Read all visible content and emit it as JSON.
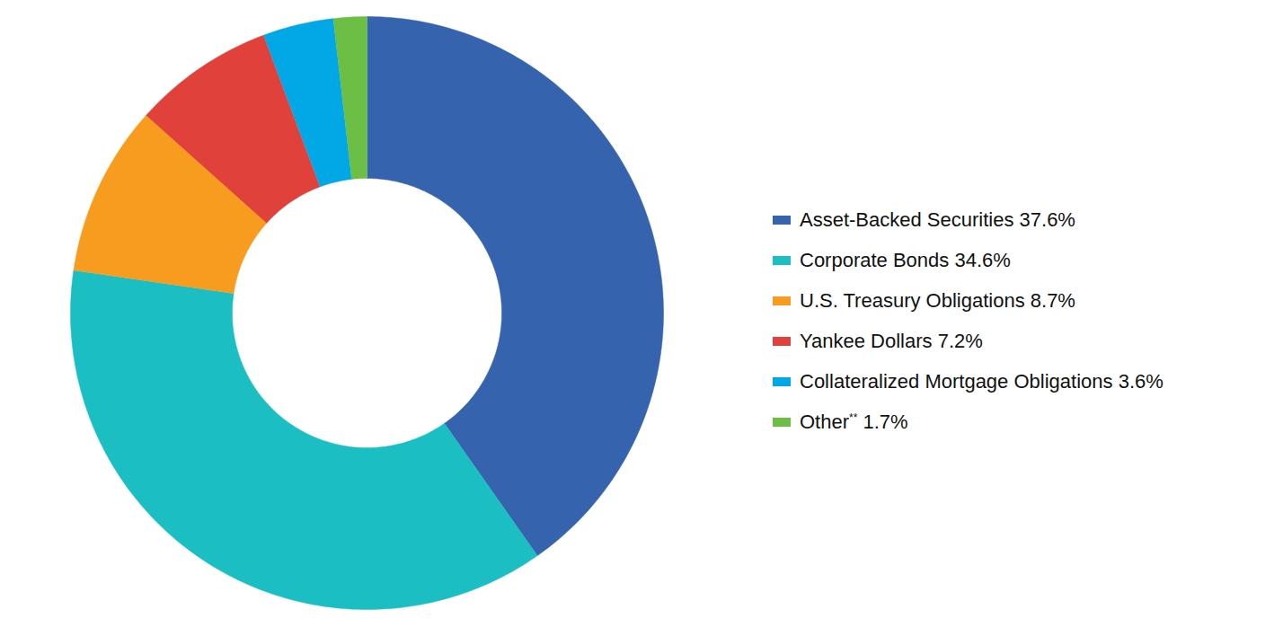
{
  "chart_data": {
    "type": "donut",
    "categories": [
      "Asset-Backed Securities",
      "Corporate Bonds",
      "U.S. Treasury Obligations",
      "Yankee Dollars",
      "Collateralized Mortgage Obligations",
      "Other**"
    ],
    "values": [
      37.6,
      34.6,
      8.7,
      7.2,
      3.6,
      1.7
    ],
    "value_labels": [
      "37.6%",
      "34.6%",
      "8.7%",
      "7.2%",
      "3.6%",
      "1.7%"
    ],
    "colors": [
      "#3563ae",
      "#1bbec2",
      "#f89c1f",
      "#e0423b",
      "#02a7e6",
      "#6cbe45"
    ],
    "legend": "right"
  }
}
